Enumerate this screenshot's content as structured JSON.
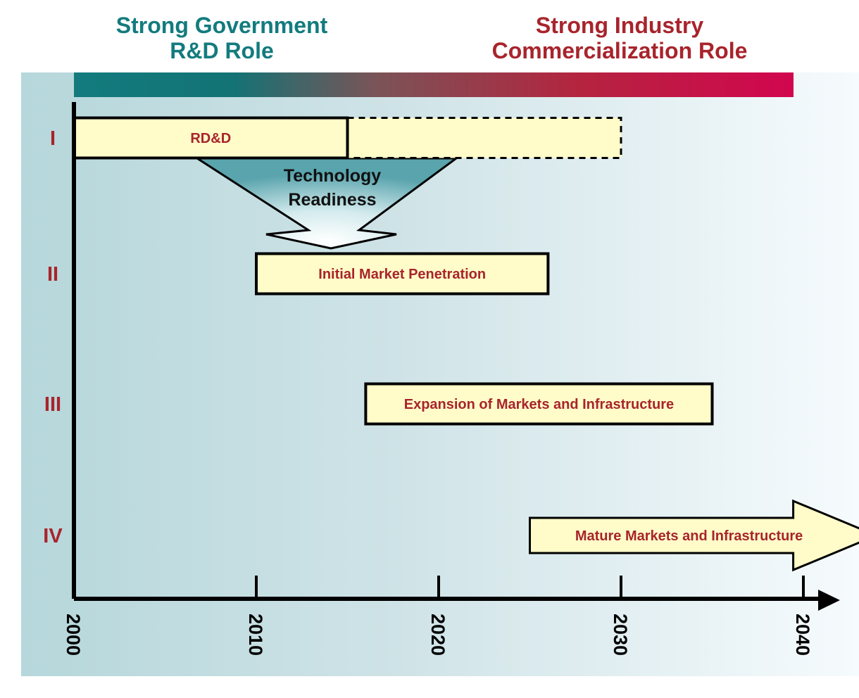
{
  "header": {
    "government_role": [
      "Strong Government",
      "R&D Role"
    ],
    "industry_role": [
      "Strong Industry",
      "Commercialization Role"
    ]
  },
  "colors": {
    "government": "#137b7e",
    "industry": "#cc0f4c",
    "phase_label": "#a8242c",
    "box_fill": "#fffcc9"
  },
  "phases": [
    {
      "numeral": "I",
      "label": "RD&D",
      "start": 2000,
      "end": 2015,
      "extended_end": 2030
    },
    {
      "numeral": "II",
      "label": "Initial Market Penetration",
      "start": 2010,
      "end": 2026
    },
    {
      "numeral": "III",
      "label": "Expansion of Markets and Infrastructure",
      "start": 2016,
      "end": 2035
    },
    {
      "numeral": "IV",
      "label": "Mature Markets and Infrastructure",
      "start": 2025,
      "end": 2044
    }
  ],
  "transition": {
    "label": [
      "Technology",
      "Readiness"
    ]
  },
  "timeline": {
    "ticks": [
      "2000",
      "2010",
      "2020",
      "2030",
      "2040"
    ]
  }
}
